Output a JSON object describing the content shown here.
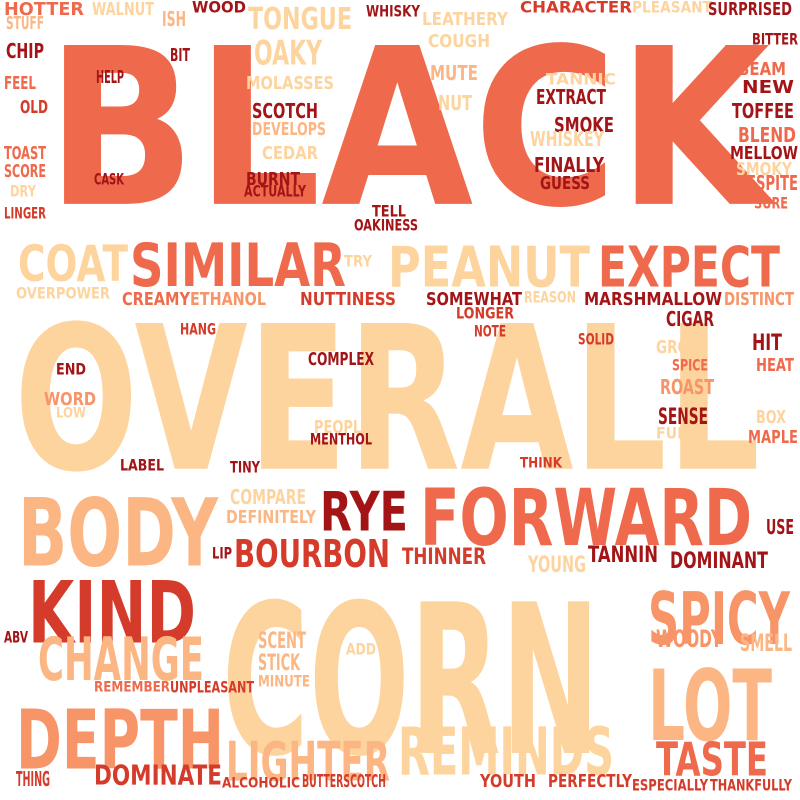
{
  "palette": {
    "dark_red": "#a31417",
    "red": "#d43b2a",
    "coral": "#ef6a4c",
    "salmon": "#f79468",
    "peach": "#fbb684",
    "light_peach": "#fdd49e"
  },
  "words": [
    {
      "text": "BLACK",
      "color": "#ef6a4c"
    },
    {
      "text": "OVERALL",
      "color": "#fdd49e"
    },
    {
      "text": "CORN",
      "color": "#fdd49e"
    },
    {
      "text": "FORWARD",
      "color": "#ef6a4c"
    },
    {
      "text": "BODY",
      "color": "#fbb684"
    },
    {
      "text": "KIND",
      "color": "#d43b2a"
    },
    {
      "text": "LOT",
      "color": "#fbb684"
    },
    {
      "text": "DEPTH",
      "color": "#f79468"
    },
    {
      "text": "SPICY",
      "color": "#f79468"
    },
    {
      "text": "REMINDS",
      "color": "#fdd49e"
    },
    {
      "text": "SIMILAR",
      "color": "#ef6a4c"
    },
    {
      "text": "PEANUT",
      "color": "#fdd49e"
    },
    {
      "text": "EXPECT",
      "color": "#ef6a4c"
    },
    {
      "text": "CHANGE",
      "color": "#fbb684"
    },
    {
      "text": "COAT",
      "color": "#fdd49e"
    },
    {
      "text": "LIGHTER",
      "color": "#fbb684"
    },
    {
      "text": "RYE",
      "color": "#a31417"
    },
    {
      "text": "TASTE",
      "color": "#ef6a4c"
    },
    {
      "text": "BOURBON",
      "color": "#d43b2a"
    },
    {
      "text": "TONGUE",
      "color": "#fdd49e"
    },
    {
      "text": "OAKY",
      "color": "#fdd49e"
    },
    {
      "text": "DOMINATE",
      "color": "#d43b2a"
    },
    {
      "text": "WOODY",
      "color": "#f79468"
    },
    {
      "text": "SMELL",
      "color": "#fbb684"
    },
    {
      "text": "SCENT",
      "color": "#fbb684"
    },
    {
      "text": "STICK",
      "color": "#fbb684"
    },
    {
      "text": "NUTTINESS",
      "color": "#d43b2a"
    },
    {
      "text": "ETHANOL",
      "color": "#f79468"
    },
    {
      "text": "CREAMY",
      "color": "#ef6a4c"
    },
    {
      "text": "SOMEWHAT",
      "color": "#a31417"
    },
    {
      "text": "MARSHMALLOW",
      "color": "#a31417"
    },
    {
      "text": "DISTINCT",
      "color": "#f79468"
    },
    {
      "text": "REASON",
      "color": "#fdd49e"
    },
    {
      "text": "OVERPOWER",
      "color": "#fdd49e"
    },
    {
      "text": "LONGER",
      "color": "#d43b2a"
    },
    {
      "text": "NOTE",
      "color": "#d43b2a"
    },
    {
      "text": "CIGAR",
      "color": "#a31417"
    },
    {
      "text": "SOLID",
      "color": "#d43b2a"
    },
    {
      "text": "GROW",
      "color": "#fdd49e"
    },
    {
      "text": "HIT",
      "color": "#a31417"
    },
    {
      "text": "SPICE",
      "color": "#ef6a4c"
    },
    {
      "text": "HEAT",
      "color": "#ef6a4c"
    },
    {
      "text": "ROAST",
      "color": "#f79468"
    },
    {
      "text": "SENSE",
      "color": "#a31417"
    },
    {
      "text": "BOX",
      "color": "#fdd49e"
    },
    {
      "text": "FUNK",
      "color": "#fdd49e"
    },
    {
      "text": "MAPLE",
      "color": "#ef6a4c"
    },
    {
      "text": "HANG",
      "color": "#d43b2a"
    },
    {
      "text": "COMPLEX",
      "color": "#a31417"
    },
    {
      "text": "END",
      "color": "#a31417"
    },
    {
      "text": "WORD",
      "color": "#f79468"
    },
    {
      "text": "LOW",
      "color": "#fdd49e"
    },
    {
      "text": "PEOPLE",
      "color": "#fdd49e"
    },
    {
      "text": "MENTHOL",
      "color": "#a31417"
    },
    {
      "text": "LABEL",
      "color": "#a31417"
    },
    {
      "text": "TINY",
      "color": "#a31417"
    },
    {
      "text": "THINK",
      "color": "#d43b2a"
    },
    {
      "text": "COMPARE",
      "color": "#fdd49e"
    },
    {
      "text": "DEFINITELY",
      "color": "#fbb684"
    },
    {
      "text": "LIP",
      "color": "#a31417"
    },
    {
      "text": "THINNER",
      "color": "#d43b2a"
    },
    {
      "text": "TANNIN",
      "color": "#a31417"
    },
    {
      "text": "DOMINANT",
      "color": "#a31417"
    },
    {
      "text": "YOUNG",
      "color": "#fdd49e"
    },
    {
      "text": "USE",
      "color": "#a31417"
    },
    {
      "text": "ABV",
      "color": "#a31417"
    },
    {
      "text": "ADD",
      "color": "#fdd49e"
    },
    {
      "text": "MINUTE",
      "color": "#fbb684"
    },
    {
      "text": "REMEMBER",
      "color": "#ef6a4c"
    },
    {
      "text": "UNPLEASANT",
      "color": "#d43b2a"
    },
    {
      "text": "THING",
      "color": "#d43b2a"
    },
    {
      "text": "ALCOHOLIC",
      "color": "#d43b2a"
    },
    {
      "text": "BUTTERSCOTCH",
      "color": "#d43b2a"
    },
    {
      "text": "YOUTH",
      "color": "#d43b2a"
    },
    {
      "text": "PERFECTLY",
      "color": "#d43b2a"
    },
    {
      "text": "ESPECIALLY",
      "color": "#d43b2a"
    },
    {
      "text": "THANKFULLY",
      "color": "#d43b2a"
    },
    {
      "text": "HOTTER",
      "color": "#ef6a4c"
    },
    {
      "text": "WALNUT",
      "color": "#fdd49e"
    },
    {
      "text": "ISH",
      "color": "#fbb684"
    },
    {
      "text": "WOOD",
      "color": "#a31417"
    },
    {
      "text": "WHISKY",
      "color": "#a31417"
    },
    {
      "text": "LEATHERY",
      "color": "#fdd49e"
    },
    {
      "text": "CHARACTER",
      "color": "#d43b2a"
    },
    {
      "text": "PLEASANT",
      "color": "#fdd49e"
    },
    {
      "text": "SURPRISED",
      "color": "#a31417"
    },
    {
      "text": "STUFF",
      "color": "#fbb684"
    },
    {
      "text": "CHIP",
      "color": "#a31417"
    },
    {
      "text": "BIT",
      "color": "#a31417"
    },
    {
      "text": "COUGH",
      "color": "#fdd49e"
    },
    {
      "text": "BITTER",
      "color": "#a31417"
    },
    {
      "text": "FEEL",
      "color": "#ef6a4c"
    },
    {
      "text": "HELP",
      "color": "#a31417"
    },
    {
      "text": "MOLASSES",
      "color": "#fdd49e"
    },
    {
      "text": "MUTE",
      "color": "#fbb684"
    },
    {
      "text": "TANNIC",
      "color": "#fdd49e"
    },
    {
      "text": "BEAM",
      "color": "#ef6a4c"
    },
    {
      "text": "NEW",
      "color": "#a31417"
    },
    {
      "text": "OLD",
      "color": "#d43b2a"
    },
    {
      "text": "NUT",
      "color": "#fdd49e"
    },
    {
      "text": "EXTRACT",
      "color": "#a31417"
    },
    {
      "text": "TOFFEE",
      "color": "#a31417"
    },
    {
      "text": "SCOTCH",
      "color": "#a31417"
    },
    {
      "text": "DEVELOPS",
      "color": "#fbb684"
    },
    {
      "text": "SMOKE",
      "color": "#a31417"
    },
    {
      "text": "BLEND",
      "color": "#ef6a4c"
    },
    {
      "text": "WHISKEY",
      "color": "#fdd49e"
    },
    {
      "text": "MELLOW",
      "color": "#a31417"
    },
    {
      "text": "TOAST",
      "color": "#ef6a4c"
    },
    {
      "text": "CEDAR",
      "color": "#fdd49e"
    },
    {
      "text": "FINALLY",
      "color": "#a31417"
    },
    {
      "text": "SMOKY",
      "color": "#fdd49e"
    },
    {
      "text": "SCORE",
      "color": "#ef6a4c"
    },
    {
      "text": "CASK",
      "color": "#a31417"
    },
    {
      "text": "BURNT",
      "color": "#a31417"
    },
    {
      "text": "GUESS",
      "color": "#a31417"
    },
    {
      "text": "DESPITE",
      "color": "#ef6a4c"
    },
    {
      "text": "DRY",
      "color": "#fdd49e"
    },
    {
      "text": "ACTUALLY",
      "color": "#a31417"
    },
    {
      "text": "LINGER",
      "color": "#d43b2a"
    },
    {
      "text": "SURE",
      "color": "#ef6a4c"
    },
    {
      "text": "TELL",
      "color": "#a31417"
    },
    {
      "text": "OAKINESS",
      "color": "#a31417"
    },
    {
      "text": "TRY",
      "color": "#fdd49e"
    }
  ]
}
